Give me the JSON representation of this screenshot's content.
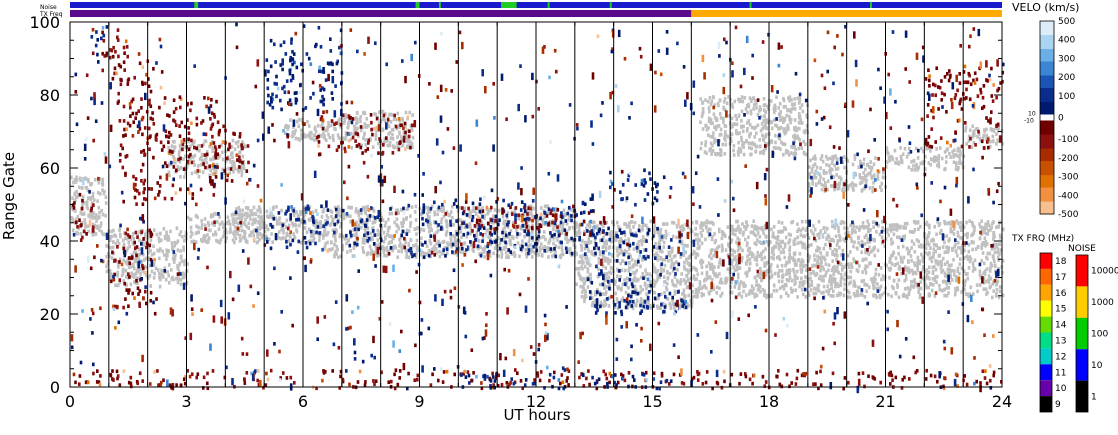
{
  "chart_data": {
    "type": "heatmap",
    "title": "",
    "xlabel": "UT hours",
    "ylabel": "Range Gate",
    "xlim": [
      0,
      24
    ],
    "ylim": [
      0,
      100
    ],
    "x_ticks": [
      "0",
      "3",
      "6",
      "9",
      "12",
      "15",
      "18",
      "21",
      "24"
    ],
    "y_ticks": [
      "0",
      "20",
      "40",
      "60",
      "80",
      "100"
    ],
    "hour_gridlines": [
      1,
      2,
      3,
      4,
      5,
      6,
      7,
      8,
      9,
      10,
      11,
      12,
      13,
      14,
      15,
      16,
      17,
      18,
      19,
      20,
      21,
      22,
      23
    ],
    "top_strips": {
      "noise_label": "Noise",
      "txfreq_label": "TX Freq",
      "noise_segments": [
        {
          "x0": 0,
          "x1": 24,
          "color": "#1a1acc"
        },
        {
          "x0": 3.2,
          "x1": 3.3,
          "color": "#22cc22"
        },
        {
          "x0": 8.9,
          "x1": 9.0,
          "color": "#22cc22"
        },
        {
          "x0": 9.5,
          "x1": 9.55,
          "color": "#22cc22"
        },
        {
          "x0": 11.1,
          "x1": 11.5,
          "color": "#22cc22"
        },
        {
          "x0": 12.3,
          "x1": 12.35,
          "color": "#22cc22"
        },
        {
          "x0": 13.9,
          "x1": 13.95,
          "color": "#22cc22"
        },
        {
          "x0": 17.5,
          "x1": 17.55,
          "color": "#22cc22"
        },
        {
          "x0": 20.6,
          "x1": 20.65,
          "color": "#22cc22"
        }
      ],
      "txfreq_segments": [
        {
          "x0": 0,
          "x1": 16,
          "color": "#5a0a8c"
        },
        {
          "x0": 16,
          "x1": 24,
          "color": "#ffaa00"
        }
      ]
    },
    "velocity_colorbar": {
      "title": "VELO (km/s)",
      "labels": [
        "500",
        "400",
        "300",
        "200",
        "100",
        "10",
        "0",
        "-10",
        "-100",
        "-200",
        "-300",
        "-400",
        "-500"
      ],
      "positive_colors": [
        "#dcecf8",
        "#aad4f0",
        "#6ab0e6",
        "#3a86d2",
        "#1a55b4",
        "#0a2c8c",
        "#001a6e"
      ],
      "negative_colors": [
        "#6e0000",
        "#8c1010",
        "#a82c00",
        "#c85000",
        "#e07000",
        "#f09040",
        "#f8c090"
      ]
    },
    "txfreq_colorbar": {
      "title": "TX FRQ (MHz)",
      "labels": [
        "18",
        "17",
        "16",
        "15",
        "14",
        "13",
        "12",
        "11",
        "10",
        "9"
      ],
      "colors": [
        "#ff0000",
        "#ff6600",
        "#ffa500",
        "#ffff00",
        "#66dd00",
        "#00dd88",
        "#00cccc",
        "#0000ff",
        "#6600aa",
        "#000000"
      ]
    },
    "noise_colorbar": {
      "title": "NOISE",
      "labels": [
        "10000",
        "1000",
        "100",
        "10",
        "1"
      ],
      "colors": [
        "#ff0000",
        "#ffcc00",
        "#00cc00",
        "#0000ff",
        "#000000"
      ]
    },
    "ground_scatter_color": "#c0c0c0",
    "bands": [
      {
        "type": "ground",
        "x0": 0,
        "x1": 0.9,
        "y0": 42,
        "y1": 58
      },
      {
        "type": "ground",
        "x0": 0.9,
        "x1": 3.0,
        "y0": 28,
        "y1": 44
      },
      {
        "type": "ground",
        "x0": 3.0,
        "x1": 5.0,
        "y0": 40,
        "y1": 48
      },
      {
        "type": "ground",
        "x0": 4.2,
        "x1": 6.5,
        "y0": 40,
        "y1": 50
      },
      {
        "type": "ground",
        "x0": 6.5,
        "x1": 13.0,
        "y0": 36,
        "y1": 50
      },
      {
        "type": "ground",
        "x0": 13.0,
        "x1": 16.0,
        "y0": 22,
        "y1": 46
      },
      {
        "type": "ground",
        "x0": 16.0,
        "x1": 24.0,
        "y0": 25,
        "y1": 46
      },
      {
        "type": "ground",
        "x0": 7.0,
        "x1": 8.8,
        "y0": 66,
        "y1": 76
      },
      {
        "type": "ground",
        "x0": 16.2,
        "x1": 19.0,
        "y0": 64,
        "y1": 80
      },
      {
        "type": "ground",
        "x0": 19.0,
        "x1": 21.0,
        "y0": 54,
        "y1": 64
      },
      {
        "type": "ground",
        "x0": 21.0,
        "x1": 23.0,
        "y0": 60,
        "y1": 66
      },
      {
        "type": "ground",
        "x0": 23.0,
        "x1": 24.0,
        "y0": 66,
        "y1": 72
      },
      {
        "type": "ground",
        "x0": 5.5,
        "x1": 7.0,
        "y0": 68,
        "y1": 74
      },
      {
        "type": "ground",
        "x0": 2.5,
        "x1": 4.5,
        "y0": 58,
        "y1": 68
      },
      {
        "type": "neg",
        "x0": 0.0,
        "x1": 0.6,
        "y0": 40,
        "y1": 54
      },
      {
        "type": "neg",
        "x0": 1.0,
        "x1": 2.2,
        "y0": 22,
        "y1": 45
      },
      {
        "type": "neg",
        "x0": 1.2,
        "x1": 2.2,
        "y0": 50,
        "y1": 90
      },
      {
        "type": "neg",
        "x0": 2.2,
        "x1": 3.8,
        "y0": 52,
        "y1": 80
      },
      {
        "type": "neg",
        "x0": 3.5,
        "x1": 4.6,
        "y0": 56,
        "y1": 72
      },
      {
        "type": "neg",
        "x0": 6.3,
        "x1": 8.8,
        "y0": 64,
        "y1": 76
      },
      {
        "type": "neg",
        "x0": 0.8,
        "x1": 1.5,
        "y0": 84,
        "y1": 100
      },
      {
        "type": "neg",
        "x0": 22.0,
        "x1": 24.0,
        "y0": 66,
        "y1": 88
      },
      {
        "type": "neg",
        "x0": 16.0,
        "x1": 24.0,
        "y0": 0,
        "y1": 5
      },
      {
        "type": "neg",
        "x0": 0,
        "x1": 16,
        "y0": 0,
        "y1": 5
      },
      {
        "type": "neg",
        "x0": 10.0,
        "x1": 14.0,
        "y0": 42,
        "y1": 50
      },
      {
        "type": "pos",
        "x0": 5.0,
        "x1": 8.0,
        "y0": 38,
        "y1": 50
      },
      {
        "type": "pos",
        "x0": 8.5,
        "x1": 13.5,
        "y0": 36,
        "y1": 52
      },
      {
        "type": "pos",
        "x0": 13.3,
        "x1": 15.8,
        "y0": 20,
        "y1": 44
      },
      {
        "type": "pos",
        "x0": 10.0,
        "x1": 15.5,
        "y0": 0,
        "y1": 4
      },
      {
        "type": "pos",
        "x0": 5.0,
        "x1": 7.0,
        "y0": 76,
        "y1": 96
      },
      {
        "type": "pos",
        "x0": 0.5,
        "x1": 1.0,
        "y0": 94,
        "y1": 100
      },
      {
        "type": "pos",
        "x0": 13.8,
        "x1": 15.2,
        "y0": 50,
        "y1": 60
      }
    ],
    "seed": 20231
  }
}
